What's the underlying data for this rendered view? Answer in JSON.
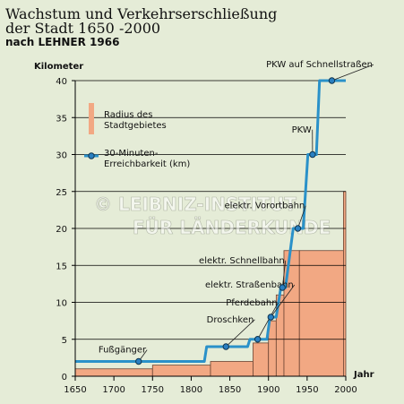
{
  "title": {
    "line1": "Wachstum und Verkehrserschließung",
    "line2": "der Stadt 1650 -2000",
    "line3": "nach LEHNER 1966"
  },
  "watermark": "© LEIBNIZ-INSTITUT FÜR LÄNDERKUNDE",
  "colors": {
    "background": "#e5ecd7",
    "bar": "#f2a883",
    "bar_edge": "#6b4432",
    "line": "#2a91c9",
    "marker": "#2a7fc1",
    "grid": "#000000"
  },
  "chart_data": {
    "type": "bar",
    "ylabel": "Kilometer",
    "xlabel": "Jahr",
    "xlim": [
      1650,
      2000
    ],
    "ylim": [
      0,
      40
    ],
    "xticks": [
      "1650",
      "1700",
      "1750",
      "1800",
      "1850",
      "1900",
      "1950",
      "2000"
    ],
    "yticks": [
      "0",
      "5",
      "10",
      "15",
      "20",
      "25",
      "30",
      "35",
      "40"
    ],
    "legend": {
      "bar_label_line1": "Radius des",
      "bar_label_line2": "Stadtgebietes",
      "line_label_line1": "30-Minuten-",
      "line_label_line2": "Erreichbarkeit (km)"
    },
    "radius_bars": [
      {
        "x_start": 1650,
        "x_end": 1750,
        "value": 1.0
      },
      {
        "x_start": 1750,
        "x_end": 1825,
        "value": 1.5
      },
      {
        "x_start": 1825,
        "x_end": 1880,
        "value": 2.0
      },
      {
        "x_start": 1880,
        "x_end": 1900,
        "value": 4.5
      },
      {
        "x_start": 1900,
        "x_end": 1910,
        "value": 7.5
      },
      {
        "x_start": 1910,
        "x_end": 1920,
        "value": 11.0
      },
      {
        "x_start": 1920,
        "x_end": 1940,
        "value": 17.0
      },
      {
        "x_start": 1940,
        "x_end": 1997,
        "value": 17.0
      },
      {
        "x_start": 1997,
        "x_end": 2000,
        "value": 25.0
      }
    ],
    "reach_line": [
      [
        1650,
        2
      ],
      [
        1817,
        2
      ],
      [
        1820,
        4
      ],
      [
        1873,
        4
      ],
      [
        1876,
        5
      ],
      [
        1898,
        5
      ],
      [
        1902,
        8
      ],
      [
        1910,
        8
      ],
      [
        1916,
        12
      ],
      [
        1922,
        12
      ],
      [
        1932,
        20
      ],
      [
        1945,
        20
      ],
      [
        1951,
        30
      ],
      [
        1962,
        30
      ],
      [
        1966,
        40
      ],
      [
        2000,
        40
      ]
    ],
    "annotations": [
      {
        "label": "Fußgänger",
        "x": 1732,
        "y": 2,
        "label_x": 1680,
        "label_y": 3.2
      },
      {
        "label": "Droschken",
        "x": 1845,
        "y": 4,
        "label_x": 1820,
        "label_y": 7.3
      },
      {
        "label": "Pferdebahn",
        "x": 1886,
        "y": 5,
        "label_x": 1845,
        "label_y": 9.6
      },
      {
        "label": "elektr. Straßenbahn",
        "x": 1903,
        "y": 8,
        "label_x": 1818,
        "label_y": 12.0
      },
      {
        "label": "elektr. Schnellbahn",
        "x": 1918,
        "y": 12,
        "label_x": 1810,
        "label_y": 15.3
      },
      {
        "label": "elektr. Vorortbahn",
        "x": 1938,
        "y": 20,
        "label_x": 1843,
        "label_y": 22.7
      },
      {
        "label": "PKW",
        "x": 1957,
        "y": 30,
        "label_x": 1930,
        "label_y": 33.0
      },
      {
        "label": "PKW auf Schnellstraßen",
        "x": 1982,
        "y": 40,
        "label_x": 1897,
        "label_y": 41.8
      }
    ]
  }
}
